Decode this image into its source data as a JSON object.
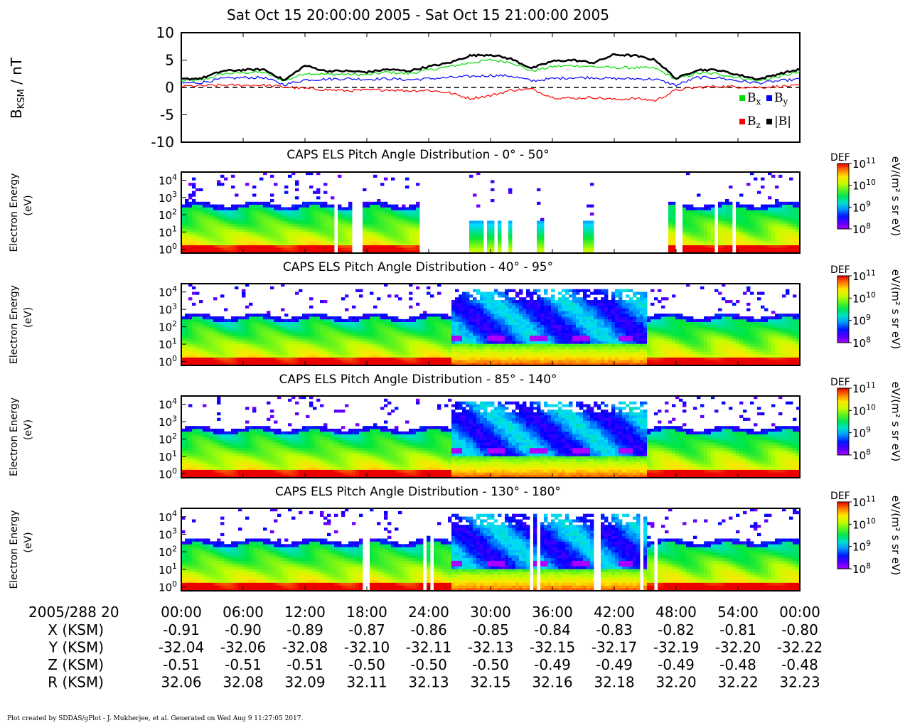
{
  "title": "Sat Oct 15 20:00:00 2005 - Sat Oct 15 21:00:00 2005",
  "footer": "Plot created by SDDAS/gPlot - J. Mukherjee, et al.  Generated on Wed Aug 9 11:27:05 2017.",
  "chart_data": [
    {
      "type": "line",
      "ylabel_main": "B",
      "ylabel_sub": "KSM",
      "ylabel_unit": " / nT",
      "ylim": [
        -10,
        10
      ],
      "yticks": [
        "10",
        "5",
        "0",
        "-5",
        "-10"
      ],
      "zero_line": "dashed",
      "legend_placement": "lower-right",
      "x": [
        0,
        2,
        4,
        6,
        8,
        10,
        12,
        14,
        16,
        18,
        20,
        22,
        24,
        26,
        28,
        30,
        32,
        34,
        36,
        38,
        40,
        42,
        44,
        46,
        48,
        50,
        52,
        54,
        56,
        58,
        60
      ],
      "series": [
        {
          "name": "Bx",
          "sub": "x",
          "color": "#00dd00",
          "values": [
            1.2,
            1.3,
            2.5,
            2.7,
            2.8,
            1.2,
            2.6,
            2.4,
            2.4,
            2.3,
            2.8,
            2.5,
            3.2,
            3.8,
            4.5,
            5.0,
            4.6,
            3.0,
            3.8,
            4.0,
            3.8,
            3.6,
            3.6,
            3.5,
            1.5,
            2.6,
            2.5,
            1.8,
            1.2,
            2.0,
            2.8
          ]
        },
        {
          "name": "By",
          "sub": "y",
          "color": "#0000ff",
          "values": [
            0.8,
            0.9,
            1.6,
            1.8,
            1.8,
            0.5,
            1.4,
            1.5,
            1.6,
            1.5,
            1.6,
            1.4,
            1.6,
            1.8,
            2.0,
            2.2,
            2.1,
            1.2,
            1.6,
            1.8,
            1.8,
            1.6,
            1.6,
            1.5,
            0.4,
            1.8,
            1.8,
            1.2,
            0.8,
            1.2,
            1.5
          ]
        },
        {
          "name": "Bz",
          "sub": "z",
          "color": "#ff0000",
          "values": [
            0.2,
            0.3,
            0.4,
            0.4,
            0.4,
            0.1,
            -0.2,
            -0.4,
            -0.6,
            -0.5,
            -0.4,
            -0.6,
            -0.5,
            -1.0,
            -2.0,
            -1.5,
            -0.5,
            -0.3,
            -1.8,
            -2.0,
            -1.8,
            -2.2,
            -2.0,
            -2.4,
            -0.5,
            0.0,
            0.2,
            0.1,
            0.0,
            0.2,
            0.3
          ]
        },
        {
          "name": "|B|",
          "sub": "",
          "color": "#000000",
          "values": [
            1.5,
            1.7,
            3.0,
            3.2,
            3.3,
            1.3,
            4.0,
            3.0,
            3.0,
            2.8,
            3.3,
            3.0,
            3.8,
            4.5,
            5.8,
            6.0,
            5.2,
            3.5,
            4.8,
            5.0,
            4.5,
            6.0,
            5.8,
            5.0,
            1.6,
            3.2,
            3.2,
            2.3,
            1.5,
            2.5,
            3.3
          ]
        }
      ]
    },
    {
      "type": "heatmap",
      "title": "CAPS ELS Pitch Angle Distribution - 0° - 50°",
      "ylabel": "Electron Energy",
      "ylabel_unit": "(eV)",
      "yscale": "log",
      "ylim": [
        0.6,
        30000
      ],
      "colorbar_label": "DEF",
      "colorbar_unit": "eV/(m² s sr eV)",
      "colorbar_range": [
        100000000,
        100000000000
      ],
      "data_gaps_minutes": [
        [
          14.5,
          15.0
        ],
        [
          16.5,
          17.5
        ],
        [
          22.8,
          27.8
        ],
        [
          29.0,
          29.4
        ],
        [
          30.2,
          30.6
        ],
        [
          31.0,
          31.5
        ],
        [
          32.0,
          34.3
        ],
        [
          35.0,
          38.8
        ],
        [
          40.0,
          47.0
        ],
        [
          47.8,
          48.3
        ],
        [
          51.5,
          51.8
        ],
        [
          53.3,
          53.6
        ]
      ],
      "profile": "quiet_low_energy_bands"
    },
    {
      "type": "heatmap",
      "title": "CAPS ELS Pitch Angle Distribution - 40° - 95°",
      "ylabel": "Electron Energy",
      "ylabel_unit": "(eV)",
      "yscale": "log",
      "ylim": [
        0.6,
        30000
      ],
      "colorbar_label": "DEF",
      "colorbar_unit": "eV/(m² s sr eV)",
      "colorbar_range": [
        100000000,
        100000000000
      ],
      "data_gaps_minutes": [],
      "profile": "broadband_enhancement_25_to_45_min"
    },
    {
      "type": "heatmap",
      "title": "CAPS ELS Pitch Angle Distribution - 85° - 140°",
      "ylabel": "Electron Energy",
      "ylabel_unit": "(eV)",
      "yscale": "log",
      "ylim": [
        0.6,
        30000
      ],
      "colorbar_label": "DEF",
      "colorbar_unit": "eV/(m² s sr eV)",
      "colorbar_range": [
        100000000,
        100000000000
      ],
      "data_gaps_minutes": [],
      "profile": "broadband_enhancement_25_to_45_min"
    },
    {
      "type": "heatmap",
      "title": "CAPS ELS Pitch Angle Distribution - 130° - 180°",
      "ylabel": "Electron Energy",
      "ylabel_unit": "(eV)",
      "yscale": "log",
      "ylim": [
        0.6,
        30000
      ],
      "colorbar_label": "DEF",
      "colorbar_unit": "eV/(m² s sr eV)",
      "colorbar_range": [
        100000000,
        100000000000
      ],
      "data_gaps_minutes": [
        [
          17.5,
          18.0
        ],
        [
          23.2,
          23.5
        ],
        [
          23.8,
          24.2
        ],
        [
          33.6,
          34.0
        ],
        [
          34.3,
          34.6
        ],
        [
          40.0,
          40.4
        ],
        [
          44.3,
          44.7
        ],
        [
          45.6,
          46.0
        ]
      ],
      "profile": "broadband_enhancement_25_to_45_min"
    }
  ],
  "heatmap_yticks": [
    {
      "base": "10",
      "exp": "4",
      "value": 10000
    },
    {
      "base": "10",
      "exp": "3",
      "value": 1000
    },
    {
      "base": "10",
      "exp": "2",
      "value": 100
    },
    {
      "base": "10",
      "exp": "1",
      "value": 10
    },
    {
      "base": "10",
      "exp": "0",
      "value": 1
    }
  ],
  "colorbar_ticks": [
    {
      "base": "10",
      "exp": "11"
    },
    {
      "base": "10",
      "exp": "10"
    },
    {
      "base": "10",
      "exp": "9"
    },
    {
      "base": "10",
      "exp": "8"
    }
  ],
  "time_axis": {
    "label": "2005/288 20",
    "ticks_minutes": [
      0,
      6,
      12,
      18,
      24,
      30,
      36,
      42,
      48,
      54,
      60
    ],
    "tick_labels": [
      "00:00",
      "06:00",
      "12:00",
      "18:00",
      "24:00",
      "30:00",
      "36:00",
      "42:00",
      "48:00",
      "54:00",
      "00:00"
    ]
  },
  "ephemeris": [
    {
      "label": "X (KSM)",
      "values": [
        "-0.91",
        "-0.90",
        "-0.89",
        "-0.87",
        "-0.86",
        "-0.85",
        "-0.84",
        "-0.83",
        "-0.82",
        "-0.81",
        "-0.80"
      ]
    },
    {
      "label": "Y (KSM)",
      "values": [
        "-32.04",
        "-32.06",
        "-32.08",
        "-32.10",
        "-32.11",
        "-32.13",
        "-32.15",
        "-32.17",
        "-32.19",
        "-32.20",
        "-32.22"
      ]
    },
    {
      "label": "Z (KSM)",
      "values": [
        "-0.51",
        "-0.51",
        "-0.51",
        "-0.50",
        "-0.50",
        "-0.50",
        "-0.49",
        "-0.49",
        "-0.49",
        "-0.48",
        "-0.48"
      ]
    },
    {
      "label": "R (KSM)",
      "values": [
        "32.06",
        "32.08",
        "32.09",
        "32.11",
        "32.13",
        "32.15",
        "32.16",
        "32.18",
        "32.20",
        "32.22",
        "32.23"
      ]
    }
  ]
}
